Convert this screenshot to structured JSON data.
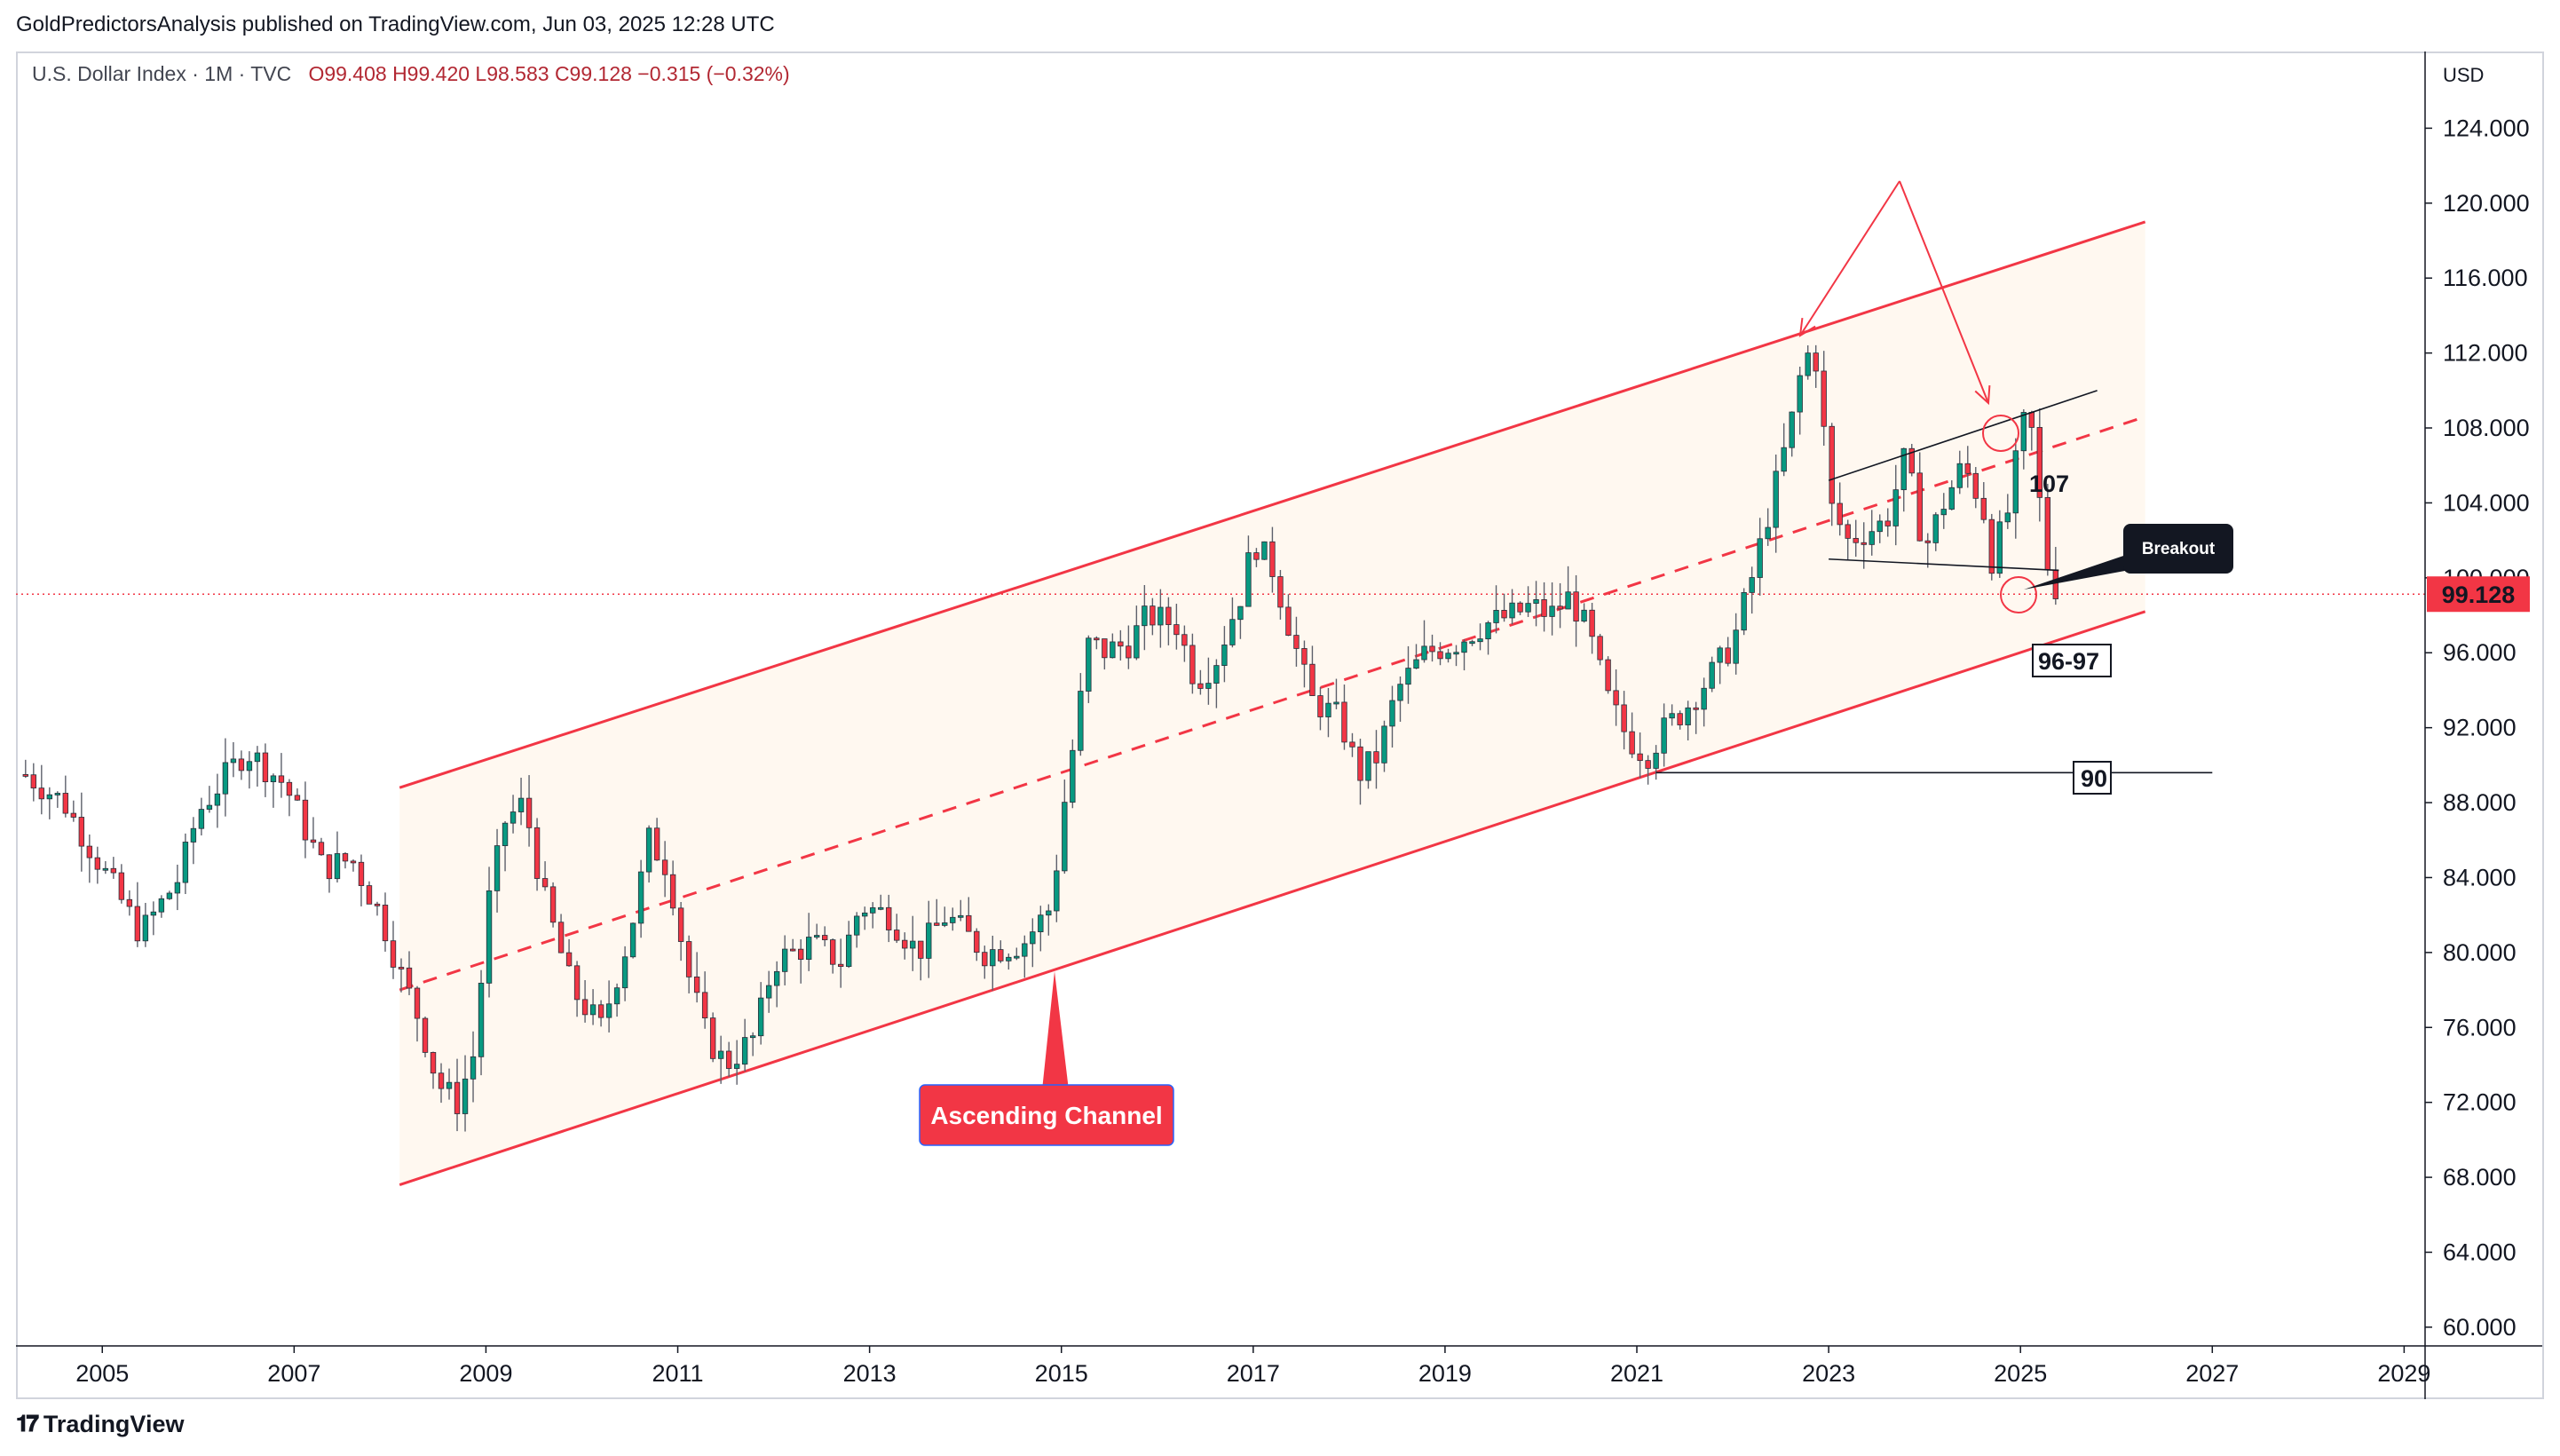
{
  "header": {
    "publisher_line": "GoldPredictorsAnalysis published on TradingView.com, Jun 03, 2025 12:28 UTC"
  },
  "legend": {
    "symbol": "U.S. Dollar Index · 1M · TVC",
    "ohlc": "O99.408  H99.420  L98.583  C99.128  −0.315 (−0.32%)"
  },
  "price_axis": {
    "currency": "USD",
    "current_price_label": "99.128",
    "current_price_color": "#f23645"
  },
  "footer": {
    "brand": "TradingView"
  },
  "annotations": {
    "channel_label": "Ascending Channel",
    "breakout_label": "Breakout",
    "level_107": "107",
    "level_96_97": "96-97",
    "level_90": "90"
  },
  "colors": {
    "up_candle": "#089981",
    "down_candle": "#f23645",
    "channel": "#f23645",
    "channel_fill": "#fff8f0",
    "callout_dark": "#131722"
  },
  "chart_data": {
    "type": "candlestick",
    "title": "U.S. Dollar Index · 1M · TVC",
    "x_ticks": [
      "2005",
      "2007",
      "2009",
      "2011",
      "2013",
      "2015",
      "2017",
      "2019",
      "2021",
      "2023",
      "2025",
      "2027",
      "2029"
    ],
    "y_ticks": [
      "124.000",
      "120.000",
      "116.000",
      "112.000",
      "108.000",
      "104.000",
      "100.000",
      "96.000",
      "92.000",
      "88.000",
      "84.000",
      "80.000",
      "76.000",
      "72.000",
      "68.000",
      "64.000",
      "60.000"
    ],
    "ylim": [
      59,
      128
    ],
    "xlim": [
      2004.1,
      2029.2
    ],
    "current_price": 99.128,
    "anchor_points": [
      [
        2004.2,
        89.5
      ],
      [
        2004.6,
        88.0
      ],
      [
        2005.0,
        84.5
      ],
      [
        2005.4,
        81.0
      ],
      [
        2005.8,
        84.0
      ],
      [
        2006.0,
        87.5
      ],
      [
        2006.3,
        89.5
      ],
      [
        2006.5,
        90.8
      ],
      [
        2006.9,
        89.0
      ],
      [
        2007.3,
        84.5
      ],
      [
        2007.6,
        85.0
      ],
      [
        2007.9,
        82.0
      ],
      [
        2008.1,
        79.0
      ],
      [
        2008.3,
        76.5
      ],
      [
        2008.5,
        73.0
      ],
      [
        2008.7,
        72.0
      ],
      [
        2008.9,
        75.0
      ],
      [
        2009.0,
        82.0
      ],
      [
        2009.2,
        87.0
      ],
      [
        2009.4,
        88.0
      ],
      [
        2009.6,
        83.0
      ],
      [
        2009.9,
        78.0
      ],
      [
        2010.2,
        76.0
      ],
      [
        2010.5,
        81.0
      ],
      [
        2010.7,
        86.0
      ],
      [
        2010.9,
        84.5
      ],
      [
        2011.1,
        79.0
      ],
      [
        2011.3,
        75.5
      ],
      [
        2011.5,
        74.0
      ],
      [
        2011.8,
        75.5
      ],
      [
        2012.0,
        79.5
      ],
      [
        2012.4,
        80.5
      ],
      [
        2012.7,
        79.5
      ],
      [
        2012.9,
        82.5
      ],
      [
        2013.2,
        82.0
      ],
      [
        2013.5,
        80.0
      ],
      [
        2013.8,
        82.0
      ],
      [
        2014.2,
        80.0
      ],
      [
        2014.6,
        80.5
      ],
      [
        2014.9,
        82.5
      ],
      [
        2015.0,
        87.0
      ],
      [
        2015.2,
        93.5
      ],
      [
        2015.3,
        97.0
      ],
      [
        2015.4,
        96.0
      ],
      [
        2015.7,
        96.5
      ],
      [
        2015.9,
        98.0
      ],
      [
        2016.2,
        97.5
      ],
      [
        2016.4,
        94.5
      ],
      [
        2016.6,
        95.5
      ],
      [
        2016.9,
        99.5
      ],
      [
        2017.0,
        102.0
      ],
      [
        2017.2,
        100.5
      ],
      [
        2017.4,
        97.0
      ],
      [
        2017.6,
        93.5
      ],
      [
        2017.9,
        92.5
      ],
      [
        2018.1,
        89.5
      ],
      [
        2018.3,
        90.5
      ],
      [
        2018.5,
        94.0
      ],
      [
        2018.8,
        96.0
      ],
      [
        2019.1,
        96.5
      ],
      [
        2019.4,
        97.5
      ],
      [
        2019.7,
        98.0
      ],
      [
        2019.9,
        98.5
      ],
      [
        2020.1,
        98.0
      ],
      [
        2020.3,
        99.0
      ],
      [
        2020.5,
        97.0
      ],
      [
        2020.7,
        93.5
      ],
      [
        2020.9,
        91.5
      ],
      [
        2021.1,
        90.5
      ],
      [
        2021.3,
        92.0
      ],
      [
        2021.5,
        93.0
      ],
      [
        2021.8,
        95.0
      ],
      [
        2022.0,
        96.5
      ],
      [
        2022.2,
        100.0
      ],
      [
        2022.4,
        104.0
      ],
      [
        2022.6,
        108.0
      ],
      [
        2022.75,
        112.0
      ],
      [
        2022.9,
        111.5
      ],
      [
        2023.0,
        104.0
      ],
      [
        2023.2,
        102.0
      ],
      [
        2023.4,
        102.5
      ],
      [
        2023.6,
        103.0
      ],
      [
        2023.8,
        106.5
      ],
      [
        2024.0,
        101.5
      ],
      [
        2024.2,
        104.0
      ],
      [
        2024.4,
        106.0
      ],
      [
        2024.6,
        104.0
      ],
      [
        2024.7,
        101.0
      ],
      [
        2024.9,
        104.0
      ],
      [
        2025.0,
        108.0
      ],
      [
        2025.1,
        108.5
      ],
      [
        2025.2,
        104.0
      ],
      [
        2025.3,
        100.0
      ],
      [
        2025.42,
        99.128
      ]
    ],
    "overlays": {
      "channel_upper": [
        [
          2008.1,
          88.8
        ],
        [
          2026.3,
          119.0
        ]
      ],
      "channel_midline": [
        [
          2008.1,
          78.0
        ],
        [
          2026.3,
          108.6
        ]
      ],
      "channel_lower": [
        [
          2008.1,
          67.6
        ],
        [
          2026.3,
          98.2
        ]
      ],
      "pattern_upper": [
        [
          2023.0,
          105.2
        ],
        [
          2025.8,
          110.0
        ]
      ],
      "pattern_lower": [
        [
          2023.0,
          101.0
        ],
        [
          2025.4,
          100.4
        ]
      ],
      "level_90_line": [
        [
          2021.2,
          89.6
        ],
        [
          2027.0,
          89.6
        ]
      ]
    }
  }
}
